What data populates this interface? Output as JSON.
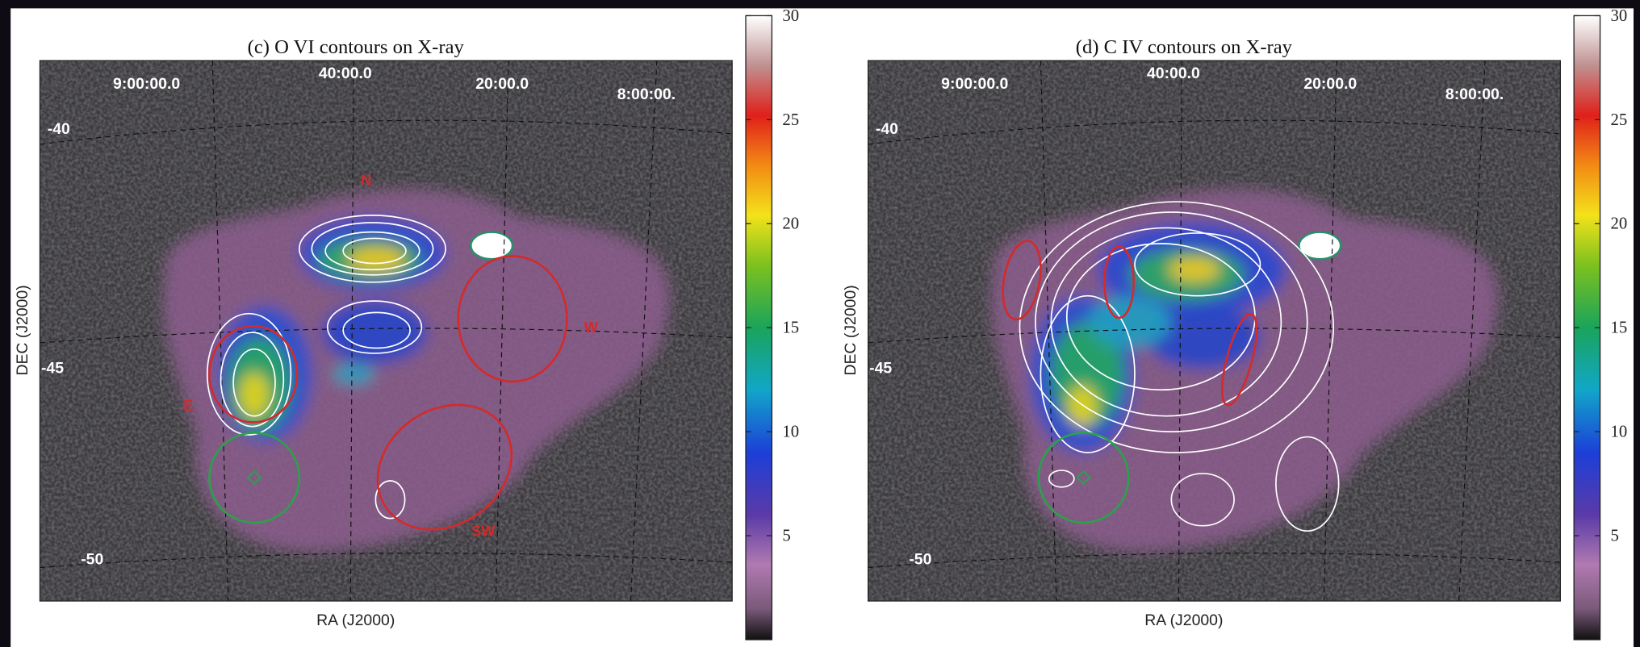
{
  "panels": [
    {
      "title": "(c) O VI contours on X-ray",
      "x_label": "RA (J2000)",
      "y_label": "DEC (J2000)",
      "ra_labels": [
        "9:00:00.0",
        "40:00.0",
        "20:00.0",
        "8:00:00."
      ],
      "dec_labels": [
        "-40",
        "-45",
        "-50"
      ],
      "region_labels": [
        "N",
        "W",
        "E",
        "SW"
      ],
      "colorbar": {
        "lim": [
          0,
          30
        ],
        "ticks": [
          5,
          10,
          15,
          20,
          25,
          30
        ]
      }
    },
    {
      "title": "(d) C IV contours on X-ray",
      "x_label": "RA (J2000)",
      "y_label": "DEC (J2000)",
      "ra_labels": [
        "9:00:00.0",
        "40:00.0",
        "20:00.0",
        "8:00:00."
      ],
      "dec_labels": [
        "-40",
        "-45",
        "-50"
      ],
      "region_labels": [],
      "colorbar": {
        "lim": [
          0,
          30
        ],
        "ticks": [
          5,
          10,
          15,
          20,
          25,
          30
        ]
      }
    }
  ]
}
